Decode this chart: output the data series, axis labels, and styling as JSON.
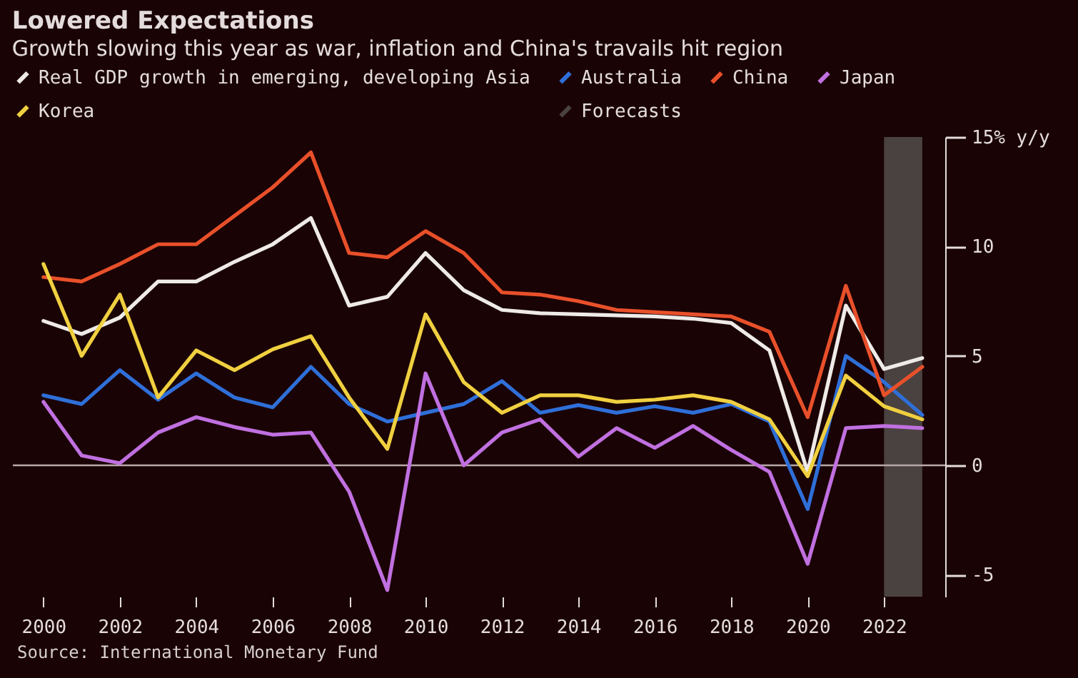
{
  "chart_data": {
    "type": "line",
    "title": "Lowered Expectations",
    "subtitle": "Growth slowing this year as war, inflation and China's travails hit region",
    "x": [
      2000,
      2001,
      2002,
      2003,
      2004,
      2005,
      2006,
      2007,
      2008,
      2009,
      2010,
      2011,
      2012,
      2013,
      2014,
      2015,
      2016,
      2017,
      2018,
      2019,
      2020,
      2021,
      2022,
      2023
    ],
    "series": [
      {
        "name": "Real GDP growth in emerging, developing Asia",
        "color": "#eeeae8",
        "values": [
          6.6,
          6.0,
          6.75,
          8.4,
          8.4,
          9.3,
          10.1,
          11.3,
          7.3,
          7.7,
          9.7,
          8.0,
          7.1,
          6.95,
          6.9,
          6.85,
          6.8,
          6.7,
          6.5,
          5.25,
          -0.3,
          7.3,
          4.4,
          4.9
        ]
      },
      {
        "name": "Australia",
        "color": "#2f6fd8",
        "values": [
          3.2,
          2.8,
          4.35,
          3.0,
          4.2,
          3.1,
          2.65,
          4.5,
          2.8,
          2.0,
          2.4,
          2.8,
          3.85,
          2.4,
          2.75,
          2.4,
          2.7,
          2.4,
          2.8,
          2.0,
          -2.0,
          5.0,
          3.8,
          2.3
        ]
      },
      {
        "name": "China",
        "color": "#e8502a",
        "values": [
          8.6,
          8.4,
          9.2,
          10.1,
          10.1,
          11.4,
          12.7,
          14.3,
          9.7,
          9.5,
          10.7,
          9.7,
          7.9,
          7.8,
          7.5,
          7.1,
          7.0,
          6.9,
          6.8,
          6.1,
          2.2,
          8.2,
          3.2,
          4.5
        ]
      },
      {
        "name": "Japan",
        "color": "#c070e0",
        "values": [
          2.9,
          0.45,
          0.1,
          1.5,
          2.2,
          1.75,
          1.4,
          1.5,
          -1.2,
          -5.7,
          4.2,
          0.0,
          1.5,
          2.1,
          0.4,
          1.7,
          0.8,
          1.8,
          0.7,
          -0.3,
          -4.5,
          1.7,
          1.8,
          1.7
        ]
      },
      {
        "name": "Korea",
        "color": "#f0d040",
        "values": [
          9.2,
          5.0,
          7.8,
          3.1,
          5.25,
          4.35,
          5.3,
          5.9,
          3.1,
          0.75,
          6.9,
          3.8,
          2.4,
          3.2,
          3.2,
          2.9,
          3.0,
          3.2,
          2.9,
          2.1,
          -0.5,
          4.1,
          2.7,
          2.1
        ]
      }
    ],
    "xlim": [
      1999.2,
      2023.6
    ],
    "xticks": [
      2000,
      2002,
      2004,
      2006,
      2008,
      2010,
      2012,
      2014,
      2016,
      2018,
      2020,
      2022
    ],
    "ylim": [
      -6,
      15
    ],
    "yticks": [
      -5,
      0,
      5,
      10,
      {
        "value": 15,
        "label": "15% y/y"
      }
    ],
    "bands": [
      {
        "axis": "x",
        "from": 2022,
        "to": 2023,
        "label": "Forecasts",
        "color": "#4a4240"
      }
    ],
    "ref_lines": [
      {
        "axis": "y",
        "value": 0,
        "color": "#b8a8a8"
      }
    ],
    "legend": "top left",
    "grid": false,
    "marker": "none",
    "line_style": "solid",
    "annotations": [
      "Source: International Monetary Fund"
    ]
  }
}
